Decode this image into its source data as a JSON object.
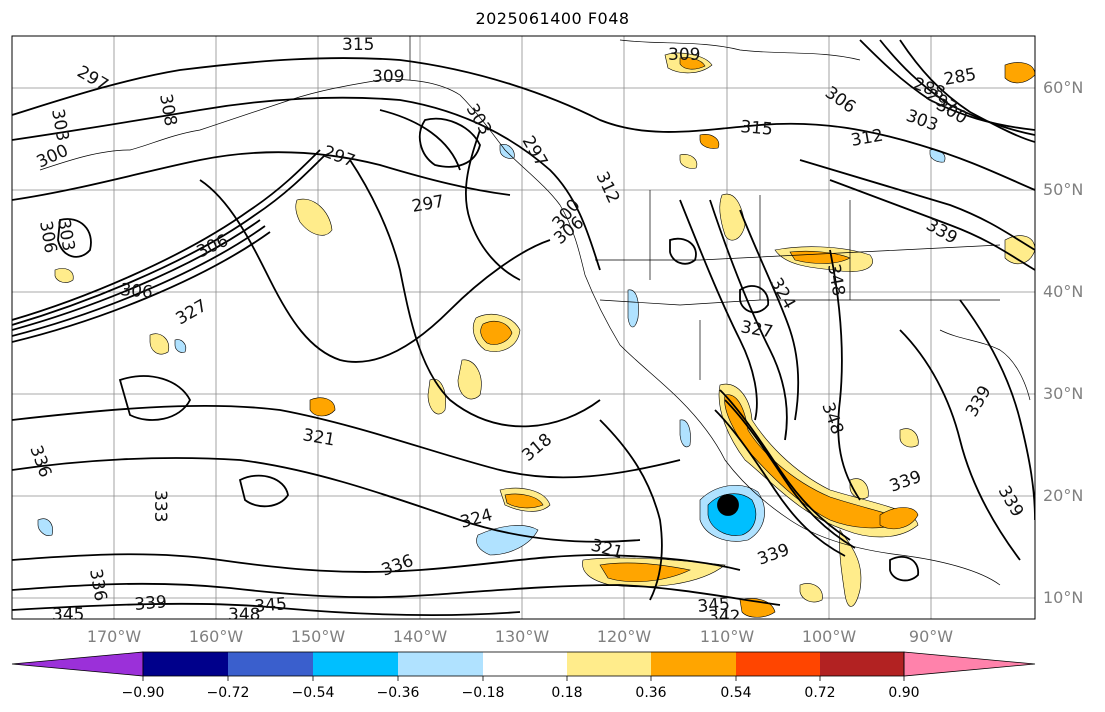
{
  "title": "2025061400 F048",
  "lat_labels": [
    "60°N",
    "50°N",
    "40°N",
    "30°N",
    "20°N",
    "10°N"
  ],
  "lon_labels": [
    "170°W",
    "160°W",
    "150°W",
    "140°W",
    "130°W",
    "120°W",
    "110°W",
    "100°W",
    "90°W"
  ],
  "colorbar": {
    "ticks": [
      "−0.90",
      "−0.72",
      "−0.54",
      "−0.36",
      "−0.18",
      "0.18",
      "0.36",
      "0.54",
      "0.72",
      "0.90"
    ],
    "colors": [
      "#9b30d9",
      "#00008b",
      "#3a5fcd",
      "#00bfff",
      "#b0e2ff",
      "#ffffff",
      "#ffec8b",
      "#ffa500",
      "#ff4500",
      "#b22222",
      "#ff82ab"
    ]
  },
  "contour_labels": [
    "315",
    "309",
    "309",
    "297",
    "308",
    "303",
    "300",
    "297",
    "297",
    "306",
    "303",
    "306",
    "303",
    "297",
    "312",
    "315",
    "312",
    "306",
    "285",
    "288",
    "297",
    "300",
    "303",
    "306",
    "327",
    "306",
    "300",
    "339",
    "348",
    "324",
    "327",
    "321",
    "318",
    "324",
    "321",
    "336",
    "333",
    "336",
    "339",
    "345",
    "348",
    "345",
    "345",
    "342",
    "339",
    "348",
    "339",
    "339",
    "336",
    "339"
  ]
}
